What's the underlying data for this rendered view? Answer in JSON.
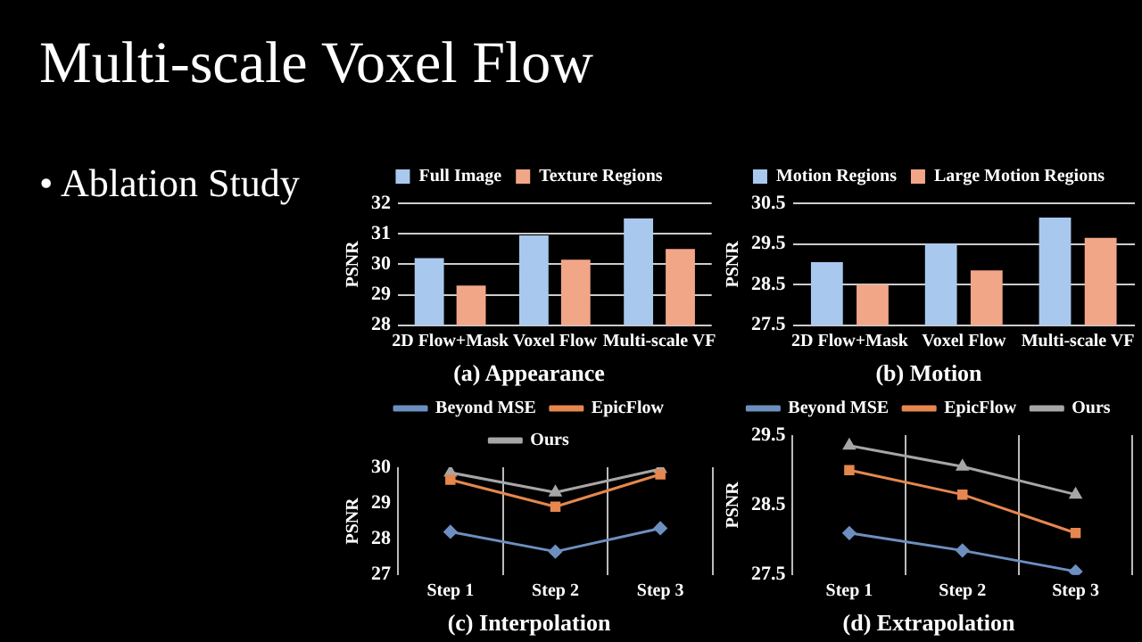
{
  "chart_data": [
    {
      "type": "other",
      "title": "Multi-scale Voxel Flow",
      "annotations": [
        "• Ablation Study"
      ]
    },
    {
      "type": "bar",
      "title": "(a) Appearance",
      "ylabel": "PSNR",
      "categories": [
        "2D Flow+Mask",
        "Voxel Flow",
        "Multi-scale VF"
      ],
      "series": [
        {
          "name": "Full Image",
          "color": "#a9c8ee",
          "values": [
            30.2,
            30.95,
            31.5
          ]
        },
        {
          "name": "Texture Regions",
          "color": "#f2a688",
          "values": [
            29.3,
            30.15,
            30.5
          ]
        }
      ],
      "ylim": [
        28,
        32
      ],
      "yticks": [
        28,
        29,
        30,
        31,
        32
      ],
      "grid": "y",
      "legend": "top"
    },
    {
      "type": "bar",
      "title": "(b) Motion",
      "ylabel": "PSNR",
      "categories": [
        "2D Flow+Mask",
        "Voxel Flow",
        "Multi-scale VF"
      ],
      "series": [
        {
          "name": "Motion Regions",
          "color": "#a9c8ee",
          "values": [
            29.05,
            29.5,
            30.15
          ]
        },
        {
          "name": "Large Motion Regions",
          "color": "#f2a688",
          "values": [
            28.5,
            28.85,
            29.65
          ]
        }
      ],
      "ylim": [
        27.5,
        30.5
      ],
      "yticks": [
        27.5,
        28.5,
        29.5,
        30.5
      ],
      "grid": "y",
      "legend": "top"
    },
    {
      "type": "line",
      "title": "(c) Interpolation",
      "ylabel": "PSNR",
      "categories": [
        "Step 1",
        "Step 2",
        "Step 3"
      ],
      "series": [
        {
          "name": "Beyond MSE",
          "color": "#6d8fc0",
          "marker": "diamond",
          "values": [
            28.2,
            27.65,
            28.3
          ]
        },
        {
          "name": "EpicFlow",
          "color": "#e5874e",
          "marker": "square",
          "values": [
            29.65,
            28.9,
            29.8
          ]
        },
        {
          "name": "Ours",
          "color": "#a6a6a6",
          "marker": "triangle",
          "values": [
            29.85,
            29.3,
            29.95
          ]
        }
      ],
      "ylim": [
        27,
        30
      ],
      "yticks": [
        27,
        28,
        29,
        30
      ],
      "grid": "x",
      "legend": "top"
    },
    {
      "type": "line",
      "title": "(d) Extrapolation",
      "ylabel": "PSNR",
      "categories": [
        "Step 1",
        "Step 2",
        "Step 3"
      ],
      "series": [
        {
          "name": "Beyond MSE",
          "color": "#6d8fc0",
          "marker": "diamond",
          "values": [
            28.1,
            27.85,
            27.55
          ]
        },
        {
          "name": "EpicFlow",
          "color": "#e5874e",
          "marker": "square",
          "values": [
            29.0,
            28.65,
            28.1
          ]
        },
        {
          "name": "Ours",
          "color": "#a6a6a6",
          "marker": "triangle",
          "values": [
            29.35,
            29.05,
            28.65
          ]
        }
      ],
      "ylim": [
        27.5,
        29.5
      ],
      "yticks": [
        27.5,
        28.5,
        29.5
      ],
      "grid": "x",
      "legend": "top"
    }
  ]
}
